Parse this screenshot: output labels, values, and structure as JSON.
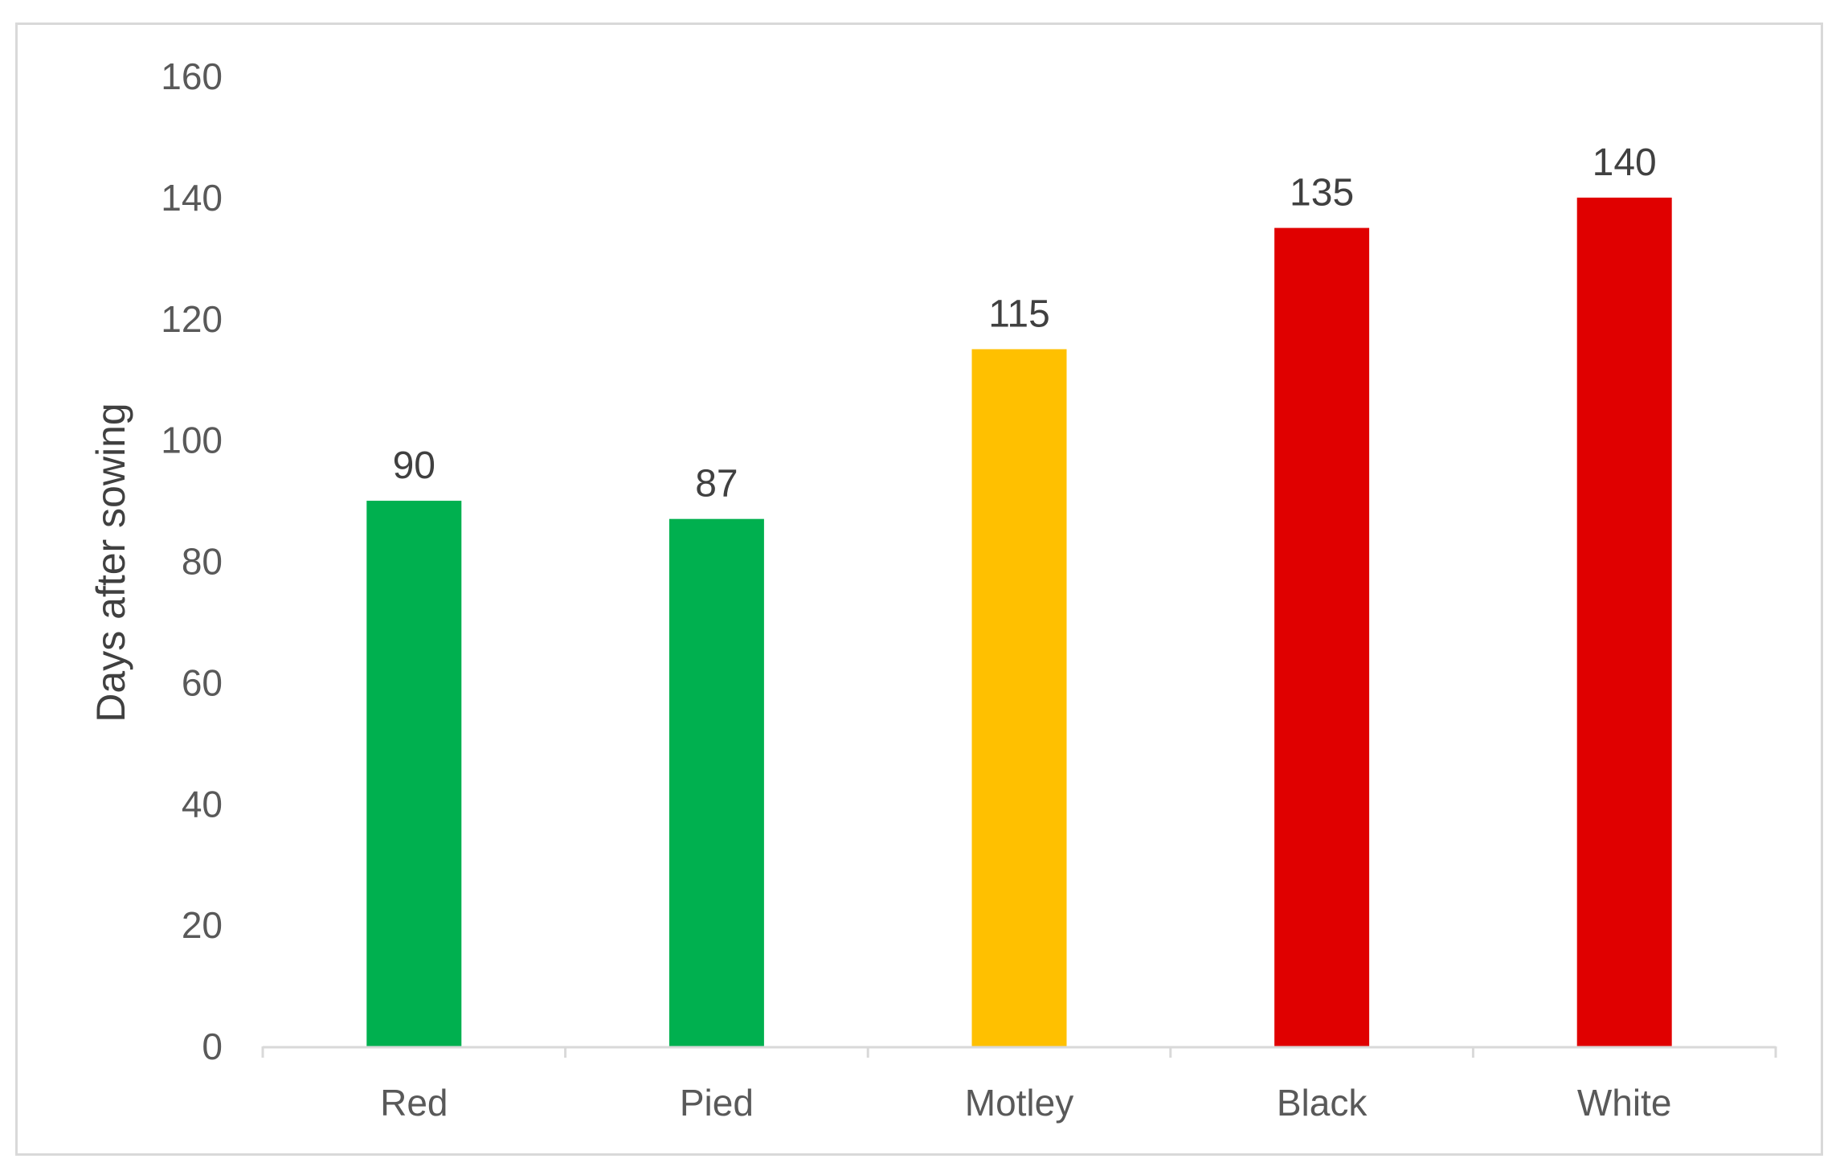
{
  "chart_data": {
    "type": "bar",
    "categories": [
      "Red",
      "Pied",
      "Motley",
      "Black",
      "White"
    ],
    "values": [
      90,
      87,
      115,
      135,
      140
    ],
    "data_labels": [
      "90",
      "87",
      "115",
      "135",
      "140"
    ],
    "bar_colors": [
      "#00b04f",
      "#00b04f",
      "#ffc000",
      "#e00000",
      "#e00000"
    ],
    "title": "",
    "xlabel": "",
    "ylabel": "Days after sowing",
    "ylim": [
      0,
      160
    ],
    "yticks": [
      "0",
      "20",
      "40",
      "60",
      "80",
      "100",
      "120",
      "140",
      "160"
    ],
    "grid": false,
    "legend": "none"
  }
}
